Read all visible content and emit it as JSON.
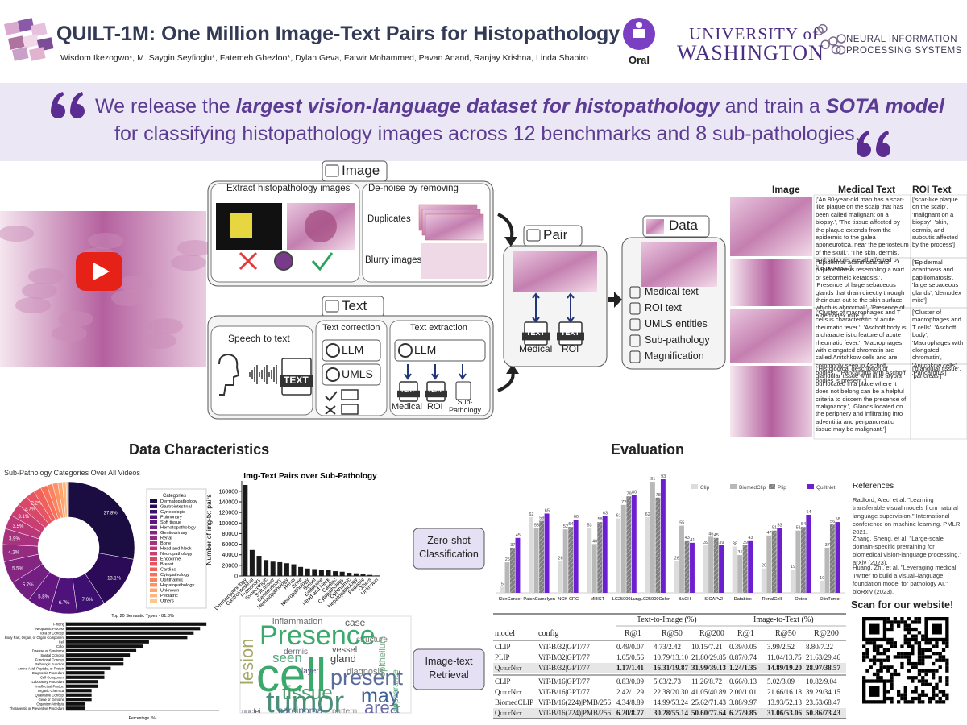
{
  "header": {
    "title": "QUILT-1M: One Million Image-Text Pairs for Histopathology",
    "authors": "Wisdom Ikezogwo*, M. Saygin Seyfioglu*, Fatemeh Ghezloo*, Dylan Geva, Fatwir Mohammed, Pavan Anand, Ranjay Krishna, Linda Shapiro",
    "badge": "Oral",
    "university": [
      "UNIVERSITY of",
      "WASHINGTON"
    ],
    "conference": "NEURAL INFORMATION PROCESSING SYSTEMS"
  },
  "quote": {
    "lines": [
      [
        {
          "text": "We release the ",
          "bold": false
        },
        {
          "text": "largest vision-language dataset for histopathology",
          "bold": true
        },
        {
          "text": " and train a ",
          "bold": false
        },
        {
          "text": "SOTA model",
          "bold": true
        }
      ],
      [
        {
          "text": "for classifying histopathology images across 12 benchmarks and 8 sub-pathologies.",
          "bold": false
        }
      ]
    ]
  },
  "pipeline": {
    "image": {
      "label": "Image",
      "extract": "Extract histopathology images",
      "denoise": "De-noise by removing",
      "duplicates": "Duplicates",
      "blurry": "Blurry images"
    },
    "text": {
      "label": "Text",
      "speech": "Speech to text",
      "correction": "Text correction",
      "extraction": "Text extraction",
      "llm": "LLM",
      "umls": "UMLS",
      "medical": "Medical",
      "roi": "ROI",
      "subpathology": "Sub-Pathology",
      "icon": "TEXT"
    },
    "pair": {
      "label": "Pair",
      "medical": "Medical",
      "roi": "ROI"
    },
    "data": {
      "label": "Data",
      "items": [
        "Medical text",
        "ROI text",
        "UMLS entities",
        "Sub-pathology",
        "Magnification"
      ]
    }
  },
  "examples": {
    "columns": [
      "Image",
      "Medical Text",
      "ROI Text"
    ],
    "rows": [
      [
        "['An 80-year-old man has a scar-like plaque on the scalp that has been called malignant on a biopsy.', 'The tissue affected by the plaque extends from the epidermis to the galea aponeurotica, near the periosteum of the skull.', 'The skin, dermis, and subcutis are all affected by the process.']",
        "['scar-like plaque on the scalp', 'malignant on a biopsy', 'skin, dermis, and subcutis affected by the process']"
      ],
      [
        "['Epidermal acanthosis and papillomatosis resembling a wart or seborrheic keratosis.', 'Presence of large sebaceous glands that drain directly through their duct out to the skin surface, which is abnormal.', 'Presence of a demodex mite.']",
        "['Epidermal acanthosis and papillomatosis', 'large sebaceous glands', 'demodex mite']"
      ],
      [
        "['Cluster of macrophages and T cells is characteristic of acute rheumatic fever.', 'Aschoff body is a characteristic feature of acute rheumatic fever.', 'Macrophages with elongated chromatin are called Anitchkow cells and are commonly seen in Aschoff bodies.', 'Pancarditis with Aschoff bodies is present.']",
        "['Cluster of macrophages and T cells', 'Aschoff body', 'Macrophages with elongated chromatin', 'Anitchkow cells', 'Pancarditis']"
      ],
      [
        "['Histological description of glandular tissue with little atypia but located in a place where it does not belong can be a helpful criteria to discern the presence of malignancy.', 'Glands located on the periphery and infiltrating into adventitia and peripancreatic tissue may be malignant.']",
        "['glandular tissue', 'pancreas']"
      ]
    ]
  },
  "sections": {
    "characteristics": "Data Characteristics",
    "evaluation": "Evaluation",
    "zero_shot": "Zero-shot Classification",
    "retrieval": "Image-text Retrieval"
  },
  "retrieval_table": {
    "header": [
      "model",
      "config"
    ],
    "groups": [
      "Text-to-Image (%)",
      "Image-to-Text (%)"
    ],
    "metrics": [
      "R@1",
      "R@50",
      "R@200",
      "R@1",
      "R@50",
      "R@200"
    ],
    "rows": [
      [
        "CLIP",
        "ViT-B/32|GPT/77",
        "0.49/0.07",
        "4.73/2.42",
        "10.15/7.21",
        "0.39/0.05",
        "3.99/2.52",
        "8.80/7.22"
      ],
      [
        "PLIP",
        "ViT-B/32|GPT/77",
        "1.05/0.56",
        "10.79/13.10",
        "21.80/29.85",
        "0.87/0.74",
        "11.04/13.75",
        "21.63/29.46"
      ],
      [
        "QuiltNet",
        "ViT-B/32|GPT/77",
        "1.17/1.41",
        "16.31/19.87",
        "31.99/39.13",
        "1.24/1.35",
        "14.89/19.20",
        "28.97/38.57"
      ],
      [
        "CLIP",
        "ViT-B/16|GPT/77",
        "0.83/0.09",
        "5.63/2.73",
        "11.26/8.72",
        "0.66/0.13",
        "5.02/3.09",
        "10.82/9.04"
      ],
      [
        "QuiltNet",
        "ViT-B/16|GPT/77",
        "2.42/1.29",
        "22.38/20.30",
        "41.05/40.89",
        "2.00/1.01",
        "21.66/16.18",
        "39.29/34.15"
      ],
      [
        "BiomedCLIP",
        "ViT-B/16(224)|PMB/256",
        "4.34/8.89",
        "14.99/53.24",
        "25.62/71.43",
        "3.88/9.97",
        "13.93/52.13",
        "23.53/68.47"
      ],
      [
        "QuiltNet",
        "ViT-B/16(224)|PMB/256",
        "6.20/8.77",
        "30.28/55.14",
        "50.60/77.64",
        "6.27/9.85",
        "31.06/53.06",
        "50.86/73.43"
      ]
    ],
    "highlight": [
      2,
      6
    ]
  },
  "references": {
    "title": "References",
    "items": [
      "Radford, Alec, et al. \"Learning transferable visual models from natural language supervision.\" International conference on machine learning. PMLR, 2021.",
      "Zhang, Sheng, et al. \"Large-scale domain-specific pretraining for biomedical vision-language processing.\" arXiv (2023).",
      "Huang, Zhi, et al. \"Leveraging medical Twitter to build a visual–language foundation model for pathology AI.\" bioRxiv (2023)."
    ]
  },
  "qr": "Scan for our website!",
  "wordcloud": {
    "words": [
      "Presence",
      "cell",
      "tumor",
      "present",
      "tissue",
      "may",
      "area",
      "seen",
      "lesion",
      "case",
      "gland",
      "inflammation",
      "vessel",
      "dermis",
      "nuclei",
      "carcinoma",
      "pattern",
      "diagnosis",
      "appearance",
      "epithelium",
      "structure",
      "layer"
    ]
  },
  "chart_data": [
    {
      "type": "donut",
      "title": "Sub-Pathology Categories Over All Videos",
      "legend_title": "Categories",
      "categories": [
        "Dermatopathology",
        "Gastrointestinal",
        "Gynecologic",
        "Pulmonary",
        "Soft tissue",
        "Hematopathology",
        "Genitourinary",
        "Renal",
        "Bone",
        "Head and Neck",
        "Neuropathology",
        "Endocrine",
        "Breast",
        "Cardiac",
        "Cytopathology",
        "Ophthalmic",
        "Hepatopathology",
        "Unknown",
        "Pediatric",
        "Others"
      ],
      "values": [
        27.8,
        13.1,
        7.0,
        6.7,
        5.8,
        5.7,
        5.5,
        4.2,
        3.9,
        3.5,
        3.1,
        2.7,
        2.2,
        1.9,
        1.6,
        1.4,
        1.3,
        1.1,
        0.9,
        0.6
      ],
      "value_labels": [
        "27.8%",
        "13.1%",
        "7.0%",
        "6.7%",
        "5.8%",
        "5.7%",
        "5.5%",
        "4.2%",
        "3.9%",
        "3.5%",
        "3.1%",
        "2.7%",
        "2.2%",
        null,
        null,
        null,
        null,
        null,
        null,
        null
      ],
      "colors": [
        "#1b0c41",
        "#2b0b57",
        "#3c0f70",
        "#4f127b",
        "#61177f",
        "#721f81",
        "#842681",
        "#962c80",
        "#a8327d",
        "#ba3878",
        "#cb3e71",
        "#da4869",
        "#e75463",
        "#f0605d",
        "#f6705c",
        "#f9825f",
        "#fc9366",
        "#fda46f",
        "#feb67c",
        "#fec68a"
      ],
      "legend": "right"
    },
    {
      "type": "bar",
      "title": "Img-Text Pairs over Sub-Pathology",
      "ylabel": "Number of img-txt pairs",
      "color": "#1a1a1a",
      "categories": [
        "Dermatopathology",
        "Gastrointestinal",
        "Pulmonary",
        "Gynecologic",
        "Soft tissue",
        "Genitourinary",
        "Hematopathology",
        "Renal",
        "Bone",
        "Neuropathology",
        "Breast",
        "Endocrine",
        "Head and Neck",
        "Cardiac",
        "Cytopathology",
        "Ophthalmic",
        "Hepatopathology",
        "Pediatric",
        "Others",
        "Unknown"
      ],
      "values": [
        172000,
        49000,
        38000,
        30000,
        27000,
        26000,
        24000,
        22000,
        17000,
        14000,
        13000,
        12000,
        11000,
        9000,
        8000,
        6000,
        5000,
        3000,
        2000,
        1000
      ],
      "ylim": [
        0,
        175000
      ],
      "yticks": [
        0,
        20000,
        40000,
        60000,
        80000,
        100000,
        120000,
        140000,
        160000
      ]
    },
    {
      "type": "hbar",
      "title": "Top 20 Semantic Types - 81.3%",
      "xlabel": "Percentage (%)",
      "color": "#111111",
      "categories": [
        "Finding",
        "Neoplastic Process",
        "Idea or Concept",
        "Body Part, Organ, or Organ Component",
        "Cell",
        "Color",
        "Disease or Syndrome",
        "Spatial Concept",
        "Functional Concept",
        "Pathologic Function",
        "Amino Acid, Peptide, or Protein",
        "Diagnostic Procedure",
        "Cell Component",
        "Laboratory Procedure",
        "Intellectual Product",
        "Organic Chemical",
        "Qualitative Concept",
        "Gene or Genome",
        "Organism Attribute",
        "Therapeutic or Preventive Procedure"
      ],
      "values": [
        22,
        21,
        20,
        19,
        13,
        12,
        11,
        10,
        9,
        9,
        7,
        6,
        6,
        5,
        5,
        4,
        4,
        4,
        3,
        3
      ],
      "xlim": [
        0,
        24
      ]
    },
    {
      "type": "grouped_bar",
      "categories": [
        "SkinCancer",
        "PatchCamelyon",
        "NCK-CRC",
        "MHIST",
        "LC25000Lung",
        "LC25000Colon",
        "BACH",
        "SICAPv2",
        "Databiox",
        "RenalCell",
        "Osteo",
        "SkinTumor"
      ],
      "series": [
        {
          "name": "Clip",
          "color": "#dcdcdc",
          "hatch": false,
          "values": [
            5,
            62,
            26,
            53,
            61,
            62,
            26,
            39,
            38,
            20,
            19,
            10
          ]
        },
        {
          "name": "BiomedClip",
          "color": "#b8b8b8",
          "hatch": false,
          "values": [
            25,
            53,
            52,
            40,
            72,
            91,
            55,
            46,
            31,
            47,
            51,
            37
          ]
        },
        {
          "name": "Plip",
          "color": "#7f7f7f",
          "hatch": true,
          "values": [
            37,
            59,
            54,
            58,
            79,
            78,
            43,
            45,
            39,
            51,
            54,
            56
          ]
        },
        {
          "name": "QuiltNet",
          "color": "#6b1fd1",
          "hatch": false,
          "values": [
            45,
            65,
            60,
            63,
            80,
            93,
            41,
            39,
            43,
            53,
            64,
            58
          ]
        }
      ],
      "ylim": [
        0,
        95
      ],
      "legend": "top-right"
    }
  ]
}
